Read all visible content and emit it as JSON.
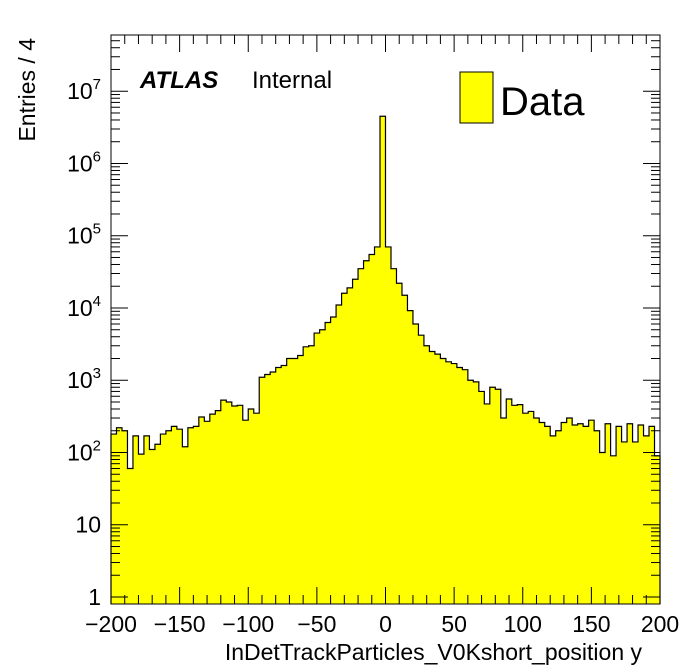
{
  "chart_data": {
    "type": "bar",
    "histogram": true,
    "log_y": true,
    "bin_width": 4,
    "x_start": -200,
    "xlim": [
      -200,
      200
    ],
    "ylim": [
      0.8,
      60000000
    ],
    "xlabel": "InDetTrackParticles_V0Kshort_position y",
    "ylabel": "Entries / 4",
    "x_ticks": [
      -200,
      -150,
      -100,
      -50,
      0,
      50,
      100,
      150,
      200
    ],
    "x_tick_labels": [
      "−200",
      "−150",
      "−100",
      "−50",
      "0",
      "50",
      "100",
      "150",
      "200"
    ],
    "y_ticks": [
      {
        "value": 1,
        "base": "1",
        "exp": ""
      },
      {
        "value": 10,
        "base": "10",
        "exp": ""
      },
      {
        "value": 100,
        "base": "10",
        "exp": "2"
      },
      {
        "value": 1000,
        "base": "10",
        "exp": "3"
      },
      {
        "value": 10000,
        "base": "10",
        "exp": "4"
      },
      {
        "value": 100000,
        "base": "10",
        "exp": "5"
      },
      {
        "value": 1000000,
        "base": "10",
        "exp": "6"
      },
      {
        "value": 10000000,
        "base": "10",
        "exp": "7"
      }
    ],
    "series": [
      {
        "name": "Data",
        "color": "#ffff00",
        "edge_color": "#000000",
        "values": [
          180,
          220,
          200,
          60,
          170,
          95,
          170,
          110,
          130,
          180,
          200,
          230,
          210,
          120,
          220,
          230,
          310,
          270,
          340,
          380,
          530,
          500,
          440,
          450,
          280,
          400,
          350,
          1100,
          1200,
          1300,
          1500,
          1600,
          2000,
          2000,
          2200,
          2900,
          3000,
          4500,
          5000,
          6300,
          7500,
          11000,
          16000,
          19000,
          25000,
          35000,
          45000,
          55000,
          70000,
          4500000,
          70000,
          35000,
          22000,
          15000,
          9200,
          6000,
          4200,
          3000,
          2500,
          2300,
          2000,
          1800,
          1700,
          1500,
          1400,
          1000,
          950,
          700,
          470,
          800,
          750,
          300,
          550,
          450,
          460,
          350,
          370,
          300,
          260,
          230,
          170,
          200,
          260,
          300,
          240,
          250,
          230,
          280,
          200,
          100,
          250,
          90,
          230,
          140,
          250,
          140,
          240,
          170,
          230,
          90
        ]
      }
    ],
    "annotations": {
      "atlas": "ATLAS",
      "internal": "Internal"
    },
    "legend": {
      "position": "top-right",
      "entries": [
        {
          "label": "Data",
          "color": "#ffff00"
        }
      ]
    },
    "grid": false
  }
}
